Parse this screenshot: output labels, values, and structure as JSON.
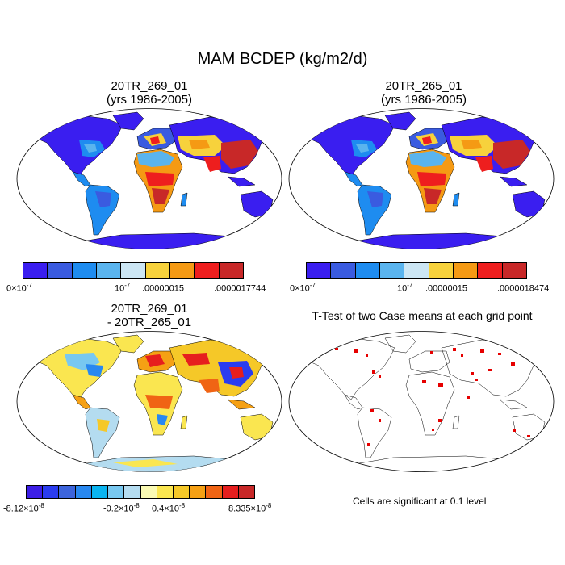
{
  "figure": {
    "title": "MAM BCDEP (kg/m2/d)"
  },
  "panels": {
    "p1": {
      "title_line1": "20TR_269_01",
      "title_line2": "(yrs 1986-2005)",
      "colorbar": {
        "colors": [
          "#3a1ef0",
          "#3a5be0",
          "#1e8cf0",
          "#5ab4ee",
          "#cce6f4",
          "#f7d23c",
          "#f59a14",
          "#ee1e1e",
          "#c82828"
        ],
        "ticks": [
          {
            "base": "0×10",
            "exp": "-7"
          },
          {
            "base": "10",
            "exp": "-7"
          },
          {
            "base": ".00000015",
            "exp": ""
          },
          {
            "base": ".0000017744",
            "exp": ""
          }
        ]
      }
    },
    "p2": {
      "title_line1": "20TR_265_01",
      "title_line2": "(yrs 1986-2005)",
      "colorbar": {
        "colors": [
          "#3a1ef0",
          "#3a5be0",
          "#1e8cf0",
          "#5ab4ee",
          "#cce6f4",
          "#f7d23c",
          "#f59a14",
          "#ee1e1e",
          "#c82828"
        ],
        "ticks": [
          {
            "base": "0×10",
            "exp": "-7"
          },
          {
            "base": "10",
            "exp": "-7"
          },
          {
            "base": ".00000015",
            "exp": ""
          },
          {
            "base": ".0000018474",
            "exp": ""
          }
        ]
      }
    },
    "p3": {
      "title_line1": "20TR_269_01",
      "title_line2": "- 20TR_265_01",
      "colorbar": {
        "colors": [
          "#3c1ee6",
          "#2a3cf0",
          "#3c64dc",
          "#2888f0",
          "#0ab4f0",
          "#78c8f0",
          "#b4dcf0",
          "#fafab4",
          "#fae650",
          "#f5c828",
          "#f5a014",
          "#f06414",
          "#e61e1e",
          "#c82828"
        ],
        "ticks": [
          {
            "base": "-8.12×10",
            "exp": "-8"
          },
          {
            "base": "-0.2×10",
            "exp": "-8"
          },
          {
            "base": "0.4×10",
            "exp": "-8"
          },
          {
            "base": "8.335×10",
            "exp": "-8"
          }
        ]
      }
    },
    "p4": {
      "title": "T-Test of two Case means at each grid point",
      "note": "Cells are significant at 0.1 level"
    }
  },
  "colors": {
    "map_outline": "#000000",
    "significant": "#e60000"
  }
}
